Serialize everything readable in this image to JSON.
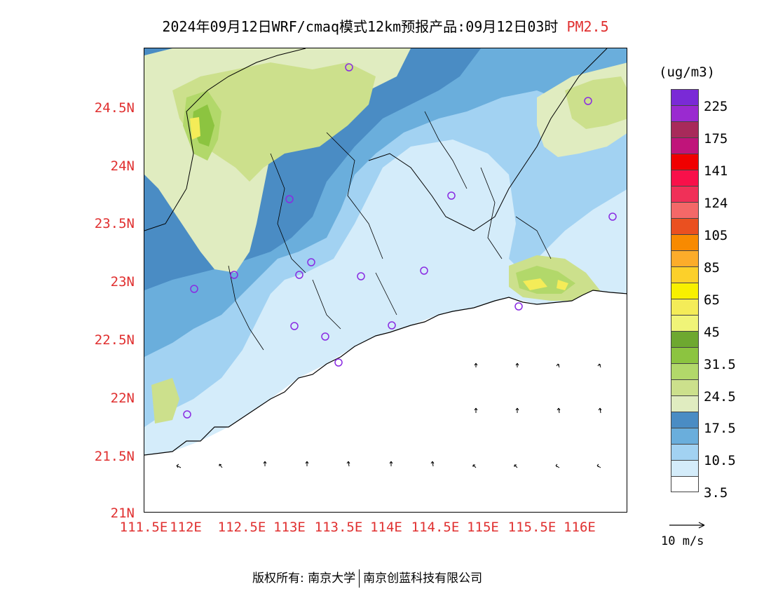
{
  "header": {
    "title": "2024年09月12日WRF/cmaq模式12km预报产品:09月12日03时",
    "variable": "PM2.5"
  },
  "axes": {
    "y_ticks": [
      "24.5N",
      "24N",
      "23.5N",
      "23N",
      "22.5N",
      "22N",
      "21.5N",
      "21N"
    ],
    "x_ticks": [
      "111.5E",
      "112E",
      "112.5E",
      "113E",
      "113.5E",
      "114E",
      "114.5E",
      "115E",
      "115.5E",
      "116E"
    ]
  },
  "colorbar": {
    "unit": "(ug/m3)",
    "colors": [
      "#7a2ad6",
      "#9a2ad0",
      "#a82a5a",
      "#c0147a",
      "#f00000",
      "#f8104a",
      "#f03058",
      "#f46868",
      "#ea5020",
      "#f88a00",
      "#fcac2a",
      "#fcd02a",
      "#f8f000",
      "#f4ec58",
      "#f0f478",
      "#6ea830",
      "#8cc440",
      "#b2d86a",
      "#cce08c",
      "#e0ecc0",
      "#4a8cc4",
      "#6aaedc",
      "#a2d2f2",
      "#d4ecfa",
      "#ffffff"
    ],
    "labels": [
      "225",
      "175",
      "141",
      "124",
      "105",
      "85",
      "65",
      "45",
      "31.5",
      "24.5",
      "17.5",
      "10.5",
      "3.5"
    ]
  },
  "wind_reference": {
    "label": "10 m/s"
  },
  "footer": {
    "left": "版权所有: 南京大学",
    "right": "南京创蓝科技有限公司"
  },
  "colors": {
    "accent": "#e03030",
    "station_marker": "#8a2be2"
  }
}
